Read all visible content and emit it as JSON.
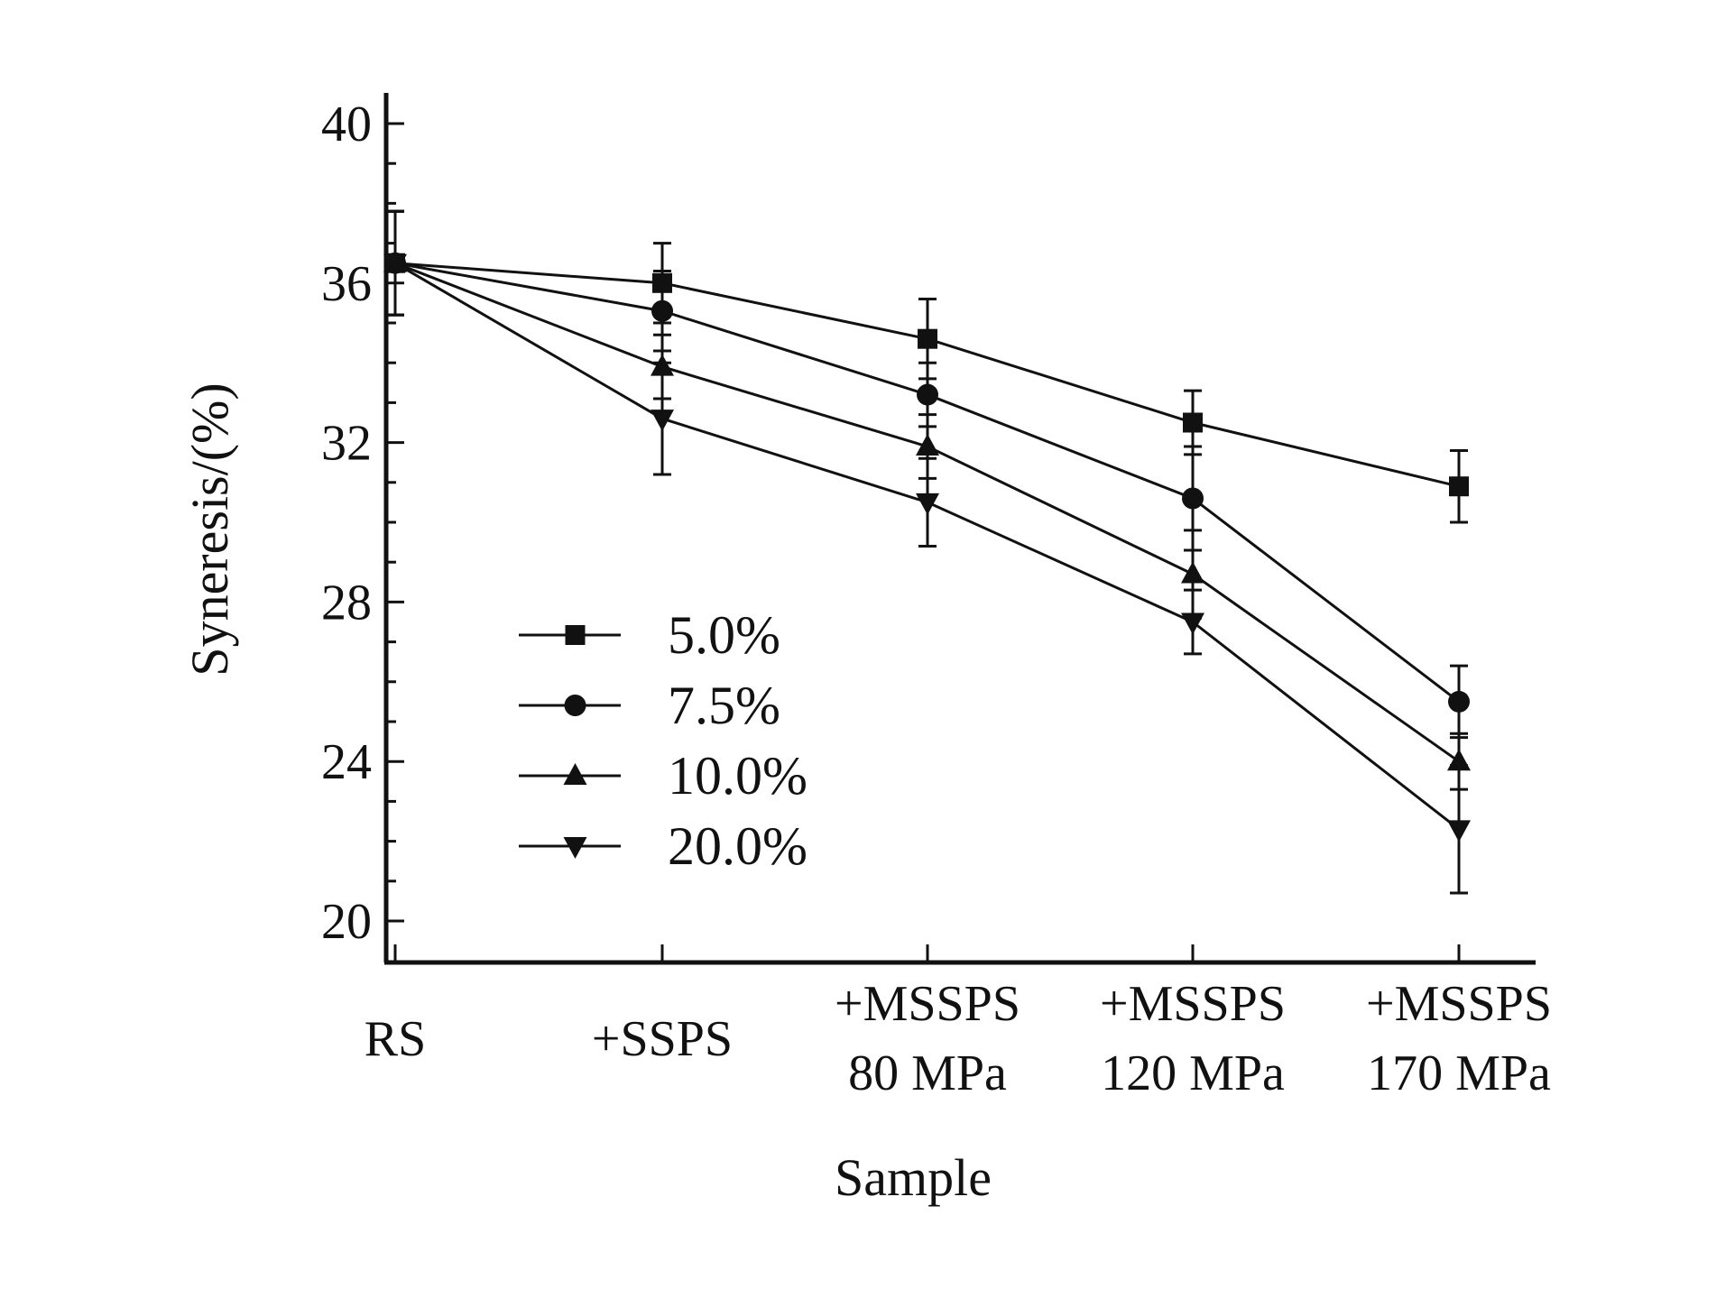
{
  "chart_data": {
    "type": "line",
    "title": "",
    "xlabel": "Sample",
    "ylabel": "Syneresis/(%)",
    "ylim": [
      19,
      41
    ],
    "yticks": [
      20,
      24,
      28,
      32,
      36,
      40
    ],
    "ytick_labels": [
      "20",
      "24",
      "28",
      "32",
      "36",
      "40"
    ],
    "categories": [
      [
        "RS"
      ],
      [
        "+SSPS"
      ],
      [
        "+MSSPS",
        "80 MPa"
      ],
      [
        "+MSSPS",
        "120 MPa"
      ],
      [
        "+MSSPS",
        "170 MPa"
      ]
    ],
    "legend_position": "lower-left",
    "series": [
      {
        "name": "5.0%",
        "marker": "square",
        "values": [
          36.5,
          36.0,
          34.6,
          32.5,
          30.9
        ],
        "errors": [
          1.3,
          1.0,
          1.0,
          0.8,
          0.9
        ]
      },
      {
        "name": "7.5%",
        "marker": "circle",
        "values": [
          36.5,
          35.3,
          33.2,
          30.6,
          25.5
        ],
        "errors": [
          1.3,
          1.0,
          0.8,
          1.3,
          0.9
        ]
      },
      {
        "name": "10.0%",
        "marker": "triangle-up",
        "values": [
          36.5,
          33.9,
          31.9,
          28.7,
          24.0
        ],
        "errors": [
          1.3,
          0.8,
          0.8,
          1.1,
          0.7
        ]
      },
      {
        "name": "20.0%",
        "marker": "triangle-down",
        "values": [
          36.5,
          32.6,
          30.5,
          27.5,
          22.3
        ],
        "errors": [
          1.3,
          1.4,
          1.1,
          0.8,
          1.6
        ]
      }
    ]
  }
}
